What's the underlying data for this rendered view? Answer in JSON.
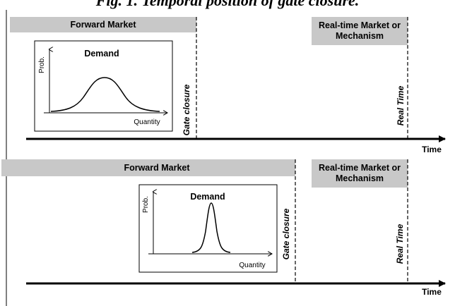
{
  "title": "Fig. 1. Temporal position of gate closure.",
  "panels": [
    {
      "forward_market": "Forward Market",
      "realtime_market": [
        "Real-time Market or",
        "Mechanism"
      ],
      "box_title": "Demand",
      "y_axis": "Prob.",
      "x_axis": "Quantity",
      "gate_closure": "Gate closure",
      "real_time": "Real Time",
      "time": "Time"
    },
    {
      "forward_market": "Forward Market",
      "realtime_market": [
        "Real-time Market or",
        "Mechanism"
      ],
      "box_title": "Demand",
      "y_axis": "Prob.",
      "x_axis": "Quantity",
      "gate_closure": "Gate closure",
      "real_time": "Real Time",
      "time": "Time"
    }
  ],
  "colors": {
    "bar_fill": "#c8c8c8",
    "line": "#000000"
  }
}
